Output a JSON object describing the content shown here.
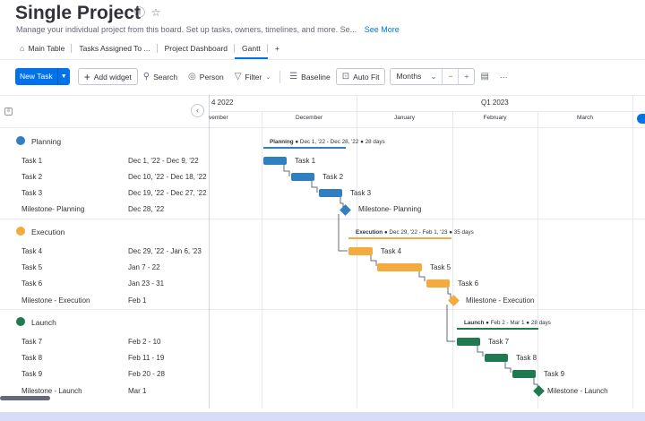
{
  "header": {
    "title": "Single Project",
    "description": "Manage your individual project from this board. Set up tasks, owners, timelines, and more. Se...",
    "see_more": "See More"
  },
  "tabs": [
    {
      "label": "Main Table",
      "icon": "home-icon"
    },
    {
      "label": "Tasks Assigned To ...",
      "icon": ""
    },
    {
      "label": "Project Dashboard",
      "icon": ""
    },
    {
      "label": "Gantt",
      "icon": "",
      "active": true
    },
    {
      "label": "+",
      "icon": ""
    }
  ],
  "toolbar": {
    "new_task": "New Task",
    "add_widget": "Add widget",
    "search": "Search",
    "person": "Person",
    "filter": "Filter",
    "baseline": "Baseline",
    "auto_fit": "Auto Fit",
    "months": "Months",
    "zoom_out": "−",
    "zoom_in": "+",
    "more": "···"
  },
  "timeline": {
    "quarters": [
      "4 2022",
      "Q1 2023"
    ],
    "months": [
      "vember",
      "December",
      "January",
      "February",
      "March"
    ]
  },
  "colors": {
    "planning": "#2f7fc1",
    "execution": "#f2ab3c",
    "launch": "#1f7a4f",
    "accent": "#0073ea"
  },
  "groups": [
    {
      "name": "Planning",
      "summary_name": "Planning",
      "summary_dates": "Dec 1, '22 - Dec 28, '22",
      "summary_days": "28 days",
      "items": [
        {
          "name": "Task 1",
          "date": "Dec 1, '22 - Dec 9, '22",
          "bar_label": "Task 1"
        },
        {
          "name": "Task 2",
          "date": "Dec 10, '22 - Dec 18, '22",
          "bar_label": "Task 2"
        },
        {
          "name": "Task 3",
          "date": "Dec 19, '22 - Dec 27, '22",
          "bar_label": "Task 3"
        },
        {
          "name": "Milestone- Planning",
          "date": "Dec 28, '22",
          "bar_label": "Milestone- Planning"
        }
      ]
    },
    {
      "name": "Execution",
      "summary_name": "Execution",
      "summary_dates": "Dec 29, '22 - Feb 1, '23",
      "summary_days": "35 days",
      "items": [
        {
          "name": "Task 4",
          "date": "Dec 29, '22 - Jan 6, '23",
          "bar_label": "Task 4"
        },
        {
          "name": "Task 5",
          "date": "Jan 7 - 22",
          "bar_label": "Task 5"
        },
        {
          "name": "Task 6",
          "date": "Jan 23 - 31",
          "bar_label": "Task 6"
        },
        {
          "name": "Milestone - Execution",
          "date": "Feb 1",
          "bar_label": "Milestone - Execution"
        }
      ]
    },
    {
      "name": "Launch",
      "summary_name": "Launch",
      "summary_dates": "Feb 2 - Mar 1",
      "summary_days": "28 days",
      "items": [
        {
          "name": "Task 7",
          "date": "Feb 2 - 10",
          "bar_label": "Task 7"
        },
        {
          "name": "Task 8",
          "date": "Feb 11 - 19",
          "bar_label": "Task 8"
        },
        {
          "name": "Task 9",
          "date": "Feb 20 - 28",
          "bar_label": "Task 9"
        },
        {
          "name": "Milestone - Launch",
          "date": "Mar 1",
          "bar_label": "Milestone - Launch"
        }
      ]
    }
  ]
}
